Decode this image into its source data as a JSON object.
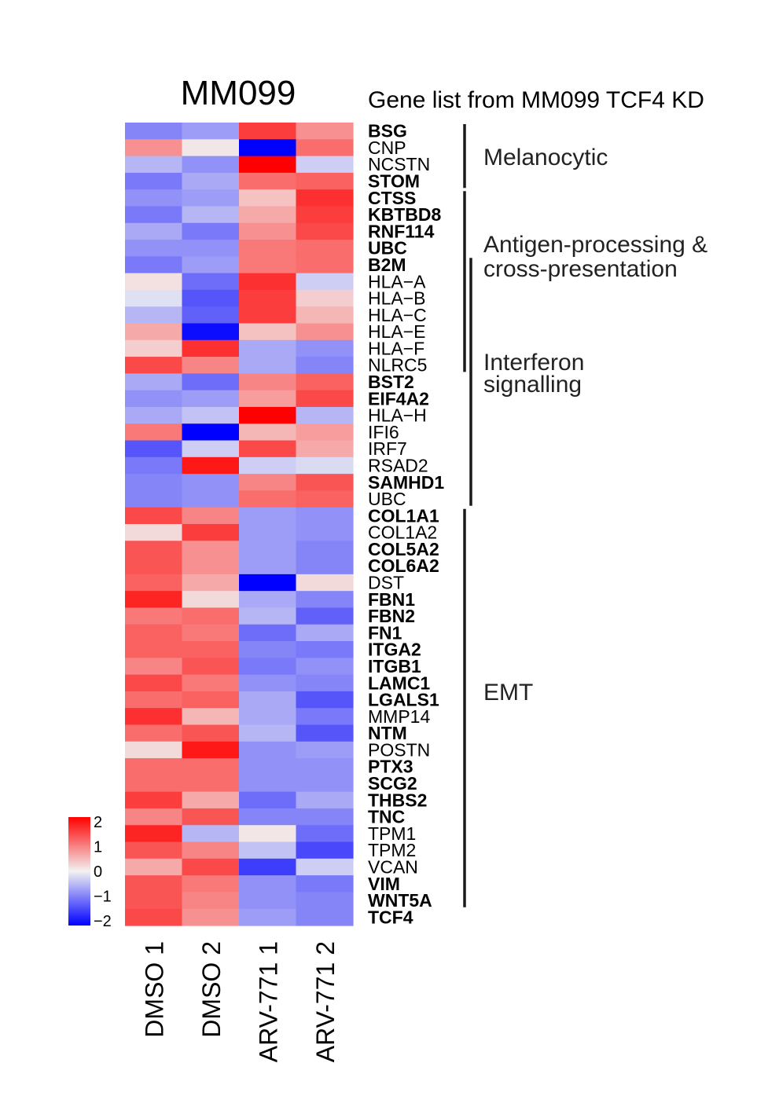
{
  "chart_data": {
    "type": "heatmap",
    "title": "MM099",
    "gene_list_title": "Gene list from MM099 TCF4 KD",
    "columns": [
      "DMSO 1",
      "DMSO 2",
      "ARV-771 1",
      "ARV-771 2"
    ],
    "rows": [
      {
        "gene": "BSG",
        "bold": true,
        "values": [
          -0.9,
          -0.7,
          1.5,
          0.8
        ]
      },
      {
        "gene": "CNP",
        "bold": false,
        "values": [
          0.8,
          0.1,
          -2.0,
          1.1
        ]
      },
      {
        "gene": "NCSTN",
        "bold": false,
        "values": [
          -0.5,
          -0.8,
          2.0,
          -0.3
        ]
      },
      {
        "gene": "STOM",
        "bold": true,
        "values": [
          -1.0,
          -0.6,
          1.1,
          1.2
        ]
      },
      {
        "gene": "CTSS",
        "bold": true,
        "values": [
          -0.8,
          -0.7,
          0.4,
          1.6
        ]
      },
      {
        "gene": "KBTBD8",
        "bold": true,
        "values": [
          -1.0,
          -0.5,
          0.6,
          1.5
        ]
      },
      {
        "gene": "RNF114",
        "bold": true,
        "values": [
          -0.6,
          -1.0,
          0.8,
          1.4
        ]
      },
      {
        "gene": "UBC",
        "bold": true,
        "values": [
          -0.8,
          -0.8,
          1.0,
          1.1
        ]
      },
      {
        "gene": "B2M",
        "bold": true,
        "values": [
          -1.0,
          -0.7,
          1.0,
          1.1
        ]
      },
      {
        "gene": "HLA−A",
        "bold": false,
        "values": [
          0.15,
          -1.1,
          1.6,
          -0.3
        ]
      },
      {
        "gene": "HLA−B",
        "bold": false,
        "values": [
          -0.15,
          -1.3,
          1.5,
          0.3
        ]
      },
      {
        "gene": "HLA−C",
        "bold": false,
        "values": [
          -0.5,
          -1.2,
          1.5,
          0.5
        ]
      },
      {
        "gene": "HLA−E",
        "bold": false,
        "values": [
          0.6,
          -1.9,
          0.4,
          0.8
        ]
      },
      {
        "gene": "HLA−F",
        "bold": false,
        "values": [
          0.3,
          1.6,
          -0.6,
          -0.8
        ]
      },
      {
        "gene": "NLRC5",
        "bold": false,
        "values": [
          1.4,
          0.9,
          -0.6,
          -0.9
        ]
      },
      {
        "gene": "BST2",
        "bold": true,
        "values": [
          -0.6,
          -1.1,
          0.9,
          1.2
        ]
      },
      {
        "gene": "EIF4A2",
        "bold": true,
        "values": [
          -0.8,
          -0.7,
          0.7,
          1.4
        ]
      },
      {
        "gene": "HLA−H",
        "bold": false,
        "values": [
          -0.6,
          -0.4,
          2.0,
          -0.5
        ]
      },
      {
        "gene": "IFI6",
        "bold": false,
        "values": [
          1.0,
          -2.0,
          0.5,
          0.7
        ]
      },
      {
        "gene": "IRF7",
        "bold": false,
        "values": [
          -1.3,
          -0.3,
          1.4,
          0.6
        ]
      },
      {
        "gene": "RSAD2",
        "bold": false,
        "values": [
          -1.0,
          1.8,
          -0.3,
          -0.2
        ]
      },
      {
        "gene": "SAMHD1",
        "bold": true,
        "values": [
          -0.9,
          -0.8,
          0.9,
          1.3
        ]
      },
      {
        "gene": "UBC",
        "bold": false,
        "values": [
          -0.9,
          -0.8,
          1.1,
          1.2
        ]
      },
      {
        "gene": "COL1A1",
        "bold": true,
        "values": [
          1.4,
          0.9,
          -0.7,
          -0.8
        ]
      },
      {
        "gene": "COL1A2",
        "bold": false,
        "values": [
          0.2,
          1.5,
          -0.7,
          -0.8
        ]
      },
      {
        "gene": "COL5A2",
        "bold": true,
        "values": [
          1.3,
          0.8,
          -0.7,
          -0.9
        ]
      },
      {
        "gene": "COL6A2",
        "bold": true,
        "values": [
          1.3,
          0.8,
          -0.7,
          -0.9
        ]
      },
      {
        "gene": "DST",
        "bold": false,
        "values": [
          1.2,
          0.6,
          -2.0,
          0.2
        ]
      },
      {
        "gene": "FBN1",
        "bold": true,
        "values": [
          1.7,
          0.2,
          -0.6,
          -0.9
        ]
      },
      {
        "gene": "FBN2",
        "bold": true,
        "values": [
          1.0,
          1.1,
          -0.5,
          -1.2
        ]
      },
      {
        "gene": "FN1",
        "bold": true,
        "values": [
          1.2,
          1.0,
          -1.1,
          -0.6
        ]
      },
      {
        "gene": "ITGA2",
        "bold": true,
        "values": [
          1.2,
          1.2,
          -0.9,
          -1.0
        ]
      },
      {
        "gene": "ITGB1",
        "bold": true,
        "values": [
          0.9,
          1.3,
          -1.0,
          -0.8
        ]
      },
      {
        "gene": "LAMC1",
        "bold": true,
        "values": [
          1.4,
          1.0,
          -0.8,
          -0.9
        ]
      },
      {
        "gene": "LGALS1",
        "bold": true,
        "values": [
          1.1,
          1.2,
          -0.6,
          -1.3
        ]
      },
      {
        "gene": "MMP14",
        "bold": false,
        "values": [
          1.6,
          0.5,
          -0.6,
          -1.0
        ]
      },
      {
        "gene": "NTM",
        "bold": true,
        "values": [
          1.1,
          1.3,
          -0.5,
          -1.3
        ]
      },
      {
        "gene": "POSTN",
        "bold": false,
        "values": [
          0.2,
          1.8,
          -0.8,
          -0.7
        ]
      },
      {
        "gene": "PTX3",
        "bold": true,
        "values": [
          1.1,
          1.1,
          -0.8,
          -0.8
        ]
      },
      {
        "gene": "SCG2",
        "bold": true,
        "values": [
          1.1,
          1.1,
          -0.8,
          -0.8
        ]
      },
      {
        "gene": "THBS2",
        "bold": true,
        "values": [
          1.5,
          0.6,
          -1.1,
          -0.6
        ]
      },
      {
        "gene": "TNC",
        "bold": true,
        "values": [
          0.9,
          1.3,
          -0.9,
          -0.9
        ]
      },
      {
        "gene": "TPM1",
        "bold": false,
        "values": [
          1.7,
          -0.5,
          0.1,
          -1.1
        ]
      },
      {
        "gene": "TPM2",
        "bold": false,
        "values": [
          1.3,
          0.9,
          -0.4,
          -1.4
        ]
      },
      {
        "gene": "VCAN",
        "bold": false,
        "values": [
          0.6,
          1.4,
          -1.5,
          -0.3
        ]
      },
      {
        "gene": "VIM",
        "bold": true,
        "values": [
          1.3,
          1.0,
          -0.8,
          -1.0
        ]
      },
      {
        "gene": "WNT5A",
        "bold": true,
        "values": [
          1.3,
          0.9,
          -0.8,
          -0.9
        ]
      },
      {
        "gene": "TCF4",
        "bold": true,
        "values": [
          1.4,
          0.8,
          -0.7,
          -0.9
        ]
      }
    ],
    "groups": [
      {
        "label_lines": [
          "Melanocytic"
        ],
        "from_row": 0,
        "to_row": 3
      },
      {
        "label_lines": [
          "Antigen-processing &",
          "cross-presentation"
        ],
        "from_row": 4,
        "to_row": 14
      },
      {
        "label_lines": [
          "Interferon",
          "signalling"
        ],
        "from_row": 8,
        "to_row": 22
      },
      {
        "label_lines": [
          "EMT"
        ],
        "from_row": 23,
        "to_row": 46
      }
    ],
    "color_scale": {
      "min": -2,
      "max": 2,
      "ticks": [
        "2",
        "1",
        "0",
        "−1",
        "−2"
      ],
      "colors": {
        "low": "#0000ff",
        "mid": "#f2f2f2",
        "high": "#ff0000"
      }
    }
  }
}
